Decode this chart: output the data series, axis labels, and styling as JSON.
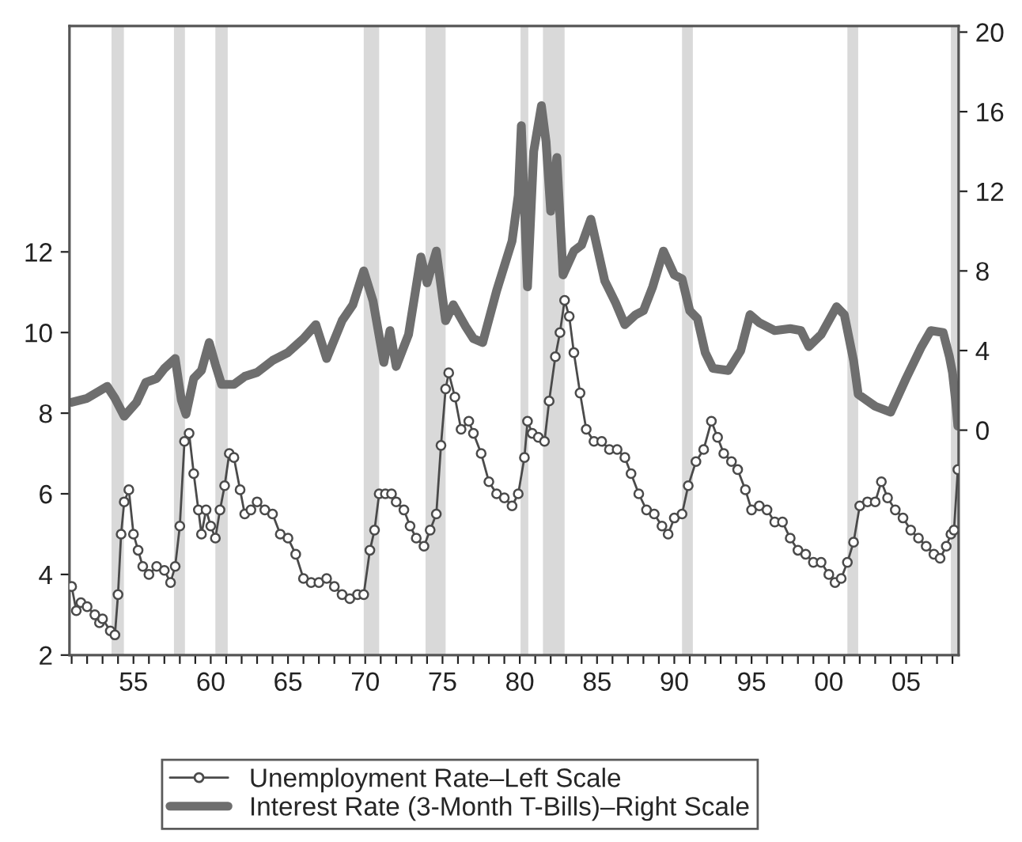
{
  "chart_data": {
    "type": "line",
    "xlim": [
      1950.86,
      2008.4
    ],
    "xticks": [
      {
        "value": 1951,
        "label": null
      },
      {
        "value": 1952,
        "label": null
      },
      {
        "value": 1953,
        "label": null
      },
      {
        "value": 1954,
        "label": null
      },
      {
        "value": 1955,
        "label": "55"
      },
      {
        "value": 1956,
        "label": null
      },
      {
        "value": 1957,
        "label": null
      },
      {
        "value": 1958,
        "label": null
      },
      {
        "value": 1959,
        "label": null
      },
      {
        "value": 1960,
        "label": "60"
      },
      {
        "value": 1961,
        "label": null
      },
      {
        "value": 1962,
        "label": null
      },
      {
        "value": 1963,
        "label": null
      },
      {
        "value": 1964,
        "label": null
      },
      {
        "value": 1965,
        "label": "65"
      },
      {
        "value": 1966,
        "label": null
      },
      {
        "value": 1967,
        "label": null
      },
      {
        "value": 1968,
        "label": null
      },
      {
        "value": 1969,
        "label": null
      },
      {
        "value": 1970,
        "label": "70"
      },
      {
        "value": 1971,
        "label": null
      },
      {
        "value": 1972,
        "label": null
      },
      {
        "value": 1973,
        "label": null
      },
      {
        "value": 1974,
        "label": null
      },
      {
        "value": 1975,
        "label": "75"
      },
      {
        "value": 1976,
        "label": null
      },
      {
        "value": 1977,
        "label": null
      },
      {
        "value": 1978,
        "label": null
      },
      {
        "value": 1979,
        "label": null
      },
      {
        "value": 1980,
        "label": "80"
      },
      {
        "value": 1981,
        "label": null
      },
      {
        "value": 1982,
        "label": null
      },
      {
        "value": 1983,
        "label": null
      },
      {
        "value": 1984,
        "label": null
      },
      {
        "value": 1985,
        "label": "85"
      },
      {
        "value": 1986,
        "label": null
      },
      {
        "value": 1987,
        "label": null
      },
      {
        "value": 1988,
        "label": null
      },
      {
        "value": 1989,
        "label": null
      },
      {
        "value": 1990,
        "label": "90"
      },
      {
        "value": 1991,
        "label": null
      },
      {
        "value": 1992,
        "label": null
      },
      {
        "value": 1993,
        "label": null
      },
      {
        "value": 1994,
        "label": null
      },
      {
        "value": 1995,
        "label": "95"
      },
      {
        "value": 1996,
        "label": null
      },
      {
        "value": 1997,
        "label": null
      },
      {
        "value": 1998,
        "label": null
      },
      {
        "value": 1999,
        "label": null
      },
      {
        "value": 2000,
        "label": "00"
      },
      {
        "value": 2001,
        "label": null
      },
      {
        "value": 2002,
        "label": null
      },
      {
        "value": 2003,
        "label": null
      },
      {
        "value": 2004,
        "label": null
      },
      {
        "value": 2005,
        "label": "05"
      },
      {
        "value": 2006,
        "label": null
      },
      {
        "value": 2007,
        "label": null
      },
      {
        "value": 2008,
        "label": null
      }
    ],
    "ylim": [
      2,
      17.6
    ],
    "yticks": [
      2,
      4,
      6,
      8,
      10,
      12
    ],
    "y2lim": [
      -11.3,
      20.3
    ],
    "y2ticks": [
      0,
      4,
      8,
      12,
      16,
      20
    ],
    "legend": "bottom",
    "bands": [
      {
        "axis": "x",
        "from": 1953.58,
        "to": 1954.38,
        "color": "#d9d9d9"
      },
      {
        "axis": "x",
        "from": 1957.62,
        "to": 1958.33,
        "color": "#d9d9d9"
      },
      {
        "axis": "x",
        "from": 1960.3,
        "to": 1961.1,
        "color": "#d9d9d9"
      },
      {
        "axis": "x",
        "from": 1969.9,
        "to": 1970.9,
        "color": "#d9d9d9"
      },
      {
        "axis": "x",
        "from": 1973.9,
        "to": 1975.2,
        "color": "#d9d9d9"
      },
      {
        "axis": "x",
        "from": 1980.05,
        "to": 1980.55,
        "color": "#d9d9d9"
      },
      {
        "axis": "x",
        "from": 1981.5,
        "to": 1982.9,
        "color": "#d9d9d9"
      },
      {
        "axis": "x",
        "from": 1990.5,
        "to": 1991.2,
        "color": "#d9d9d9"
      },
      {
        "axis": "x",
        "from": 2001.2,
        "to": 2001.9,
        "color": "#d9d9d9"
      },
      {
        "axis": "x",
        "from": 2007.9,
        "to": 2008.4,
        "color": "#d9d9d9"
      }
    ],
    "series": [
      {
        "name": "Unemployment Rate–Left Scale",
        "color": "#4a4a4a",
        "marker": "circle",
        "axis": "y",
        "x": [
          1951.0,
          1951.3,
          1951.6,
          1952.0,
          1952.5,
          1952.8,
          1953.0,
          1953.5,
          1953.8,
          1954.0,
          1954.2,
          1954.4,
          1954.7,
          1955.0,
          1955.3,
          1955.6,
          1956.0,
          1956.5,
          1957.0,
          1957.4,
          1957.7,
          1958.0,
          1958.3,
          1958.6,
          1958.9,
          1959.2,
          1959.4,
          1959.7,
          1960.0,
          1960.3,
          1960.6,
          1960.9,
          1961.2,
          1961.5,
          1961.9,
          1962.2,
          1962.6,
          1963.0,
          1963.5,
          1964.0,
          1964.5,
          1965.0,
          1965.5,
          1966.0,
          1966.5,
          1967.0,
          1967.5,
          1968.0,
          1968.5,
          1969.0,
          1969.5,
          1969.9,
          1970.3,
          1970.6,
          1970.9,
          1971.3,
          1971.7,
          1972.0,
          1972.5,
          1972.9,
          1973.3,
          1973.8,
          1974.2,
          1974.6,
          1974.9,
          1975.2,
          1975.4,
          1975.8,
          1976.2,
          1976.7,
          1977.0,
          1977.5,
          1978.0,
          1978.5,
          1979.0,
          1979.5,
          1979.9,
          1980.3,
          1980.5,
          1980.8,
          1981.2,
          1981.6,
          1981.9,
          1982.3,
          1982.6,
          1982.9,
          1983.2,
          1983.5,
          1983.9,
          1984.3,
          1984.8,
          1985.3,
          1985.8,
          1986.3,
          1986.8,
          1987.2,
          1987.7,
          1988.2,
          1988.7,
          1989.2,
          1989.6,
          1990.0,
          1990.5,
          1990.9,
          1991.4,
          1991.9,
          1992.4,
          1992.8,
          1993.2,
          1993.7,
          1994.1,
          1994.6,
          1995.0,
          1995.5,
          1996.0,
          1996.5,
          1997.0,
          1997.5,
          1998.0,
          1998.5,
          1999.0,
          1999.5,
          2000.0,
          2000.4,
          2000.8,
          2001.2,
          2001.6,
          2002.0,
          2002.5,
          2003.0,
          2003.4,
          2003.8,
          2004.3,
          2004.8,
          2005.3,
          2005.8,
          2006.3,
          2006.8,
          2007.2,
          2007.6,
          2007.9,
          2008.1,
          2008.35
        ],
        "values": [
          3.7,
          3.1,
          3.3,
          3.2,
          3.0,
          2.8,
          2.9,
          2.6,
          2.5,
          3.5,
          5.0,
          5.8,
          6.1,
          5.0,
          4.6,
          4.2,
          4.0,
          4.2,
          4.1,
          3.8,
          4.2,
          5.2,
          7.3,
          7.5,
          6.5,
          5.6,
          5.0,
          5.6,
          5.2,
          4.9,
          5.6,
          6.2,
          7.0,
          6.9,
          6.1,
          5.5,
          5.6,
          5.8,
          5.6,
          5.5,
          5.0,
          4.9,
          4.5,
          3.9,
          3.8,
          3.8,
          3.9,
          3.7,
          3.5,
          3.4,
          3.5,
          3.5,
          4.6,
          5.1,
          6.0,
          6.0,
          6.0,
          5.8,
          5.6,
          5.2,
          4.9,
          4.7,
          5.1,
          5.5,
          7.2,
          8.6,
          9.0,
          8.4,
          7.6,
          7.8,
          7.5,
          7.0,
          6.3,
          6.0,
          5.9,
          5.7,
          6.0,
          6.9,
          7.8,
          7.5,
          7.4,
          7.3,
          8.3,
          9.4,
          10.0,
          10.8,
          10.4,
          9.5,
          8.5,
          7.6,
          7.3,
          7.3,
          7.1,
          7.1,
          6.9,
          6.5,
          6.0,
          5.6,
          5.5,
          5.2,
          5.0,
          5.4,
          5.5,
          6.2,
          6.8,
          7.1,
          7.8,
          7.4,
          7.0,
          6.8,
          6.6,
          6.1,
          5.6,
          5.7,
          5.6,
          5.3,
          5.3,
          4.9,
          4.6,
          4.5,
          4.3,
          4.3,
          4.0,
          3.8,
          3.9,
          4.3,
          4.8,
          5.7,
          5.8,
          5.8,
          6.3,
          5.9,
          5.6,
          5.4,
          5.1,
          4.9,
          4.7,
          4.5,
          4.4,
          4.7,
          5.0,
          5.1,
          6.6
        ]
      },
      {
        "name": "Interest Rate (3-Month T-Bills)–Right Scale",
        "color": "#6e6e6e",
        "marker": "none",
        "axis": "y2",
        "x": [
          1951.0,
          1952.0,
          1953.3,
          1953.8,
          1954.4,
          1955.2,
          1955.8,
          1956.5,
          1957.0,
          1957.7,
          1958.1,
          1958.4,
          1958.9,
          1959.4,
          1959.9,
          1960.3,
          1960.7,
          1961.5,
          1962.2,
          1963.0,
          1964.0,
          1965.0,
          1966.0,
          1966.8,
          1967.5,
          1968.5,
          1969.2,
          1969.9,
          1970.5,
          1971.2,
          1971.6,
          1972.0,
          1972.8,
          1973.6,
          1974.0,
          1974.6,
          1975.2,
          1975.7,
          1976.5,
          1977.0,
          1977.6,
          1978.5,
          1979.5,
          1979.9,
          1980.1,
          1980.5,
          1980.9,
          1981.4,
          1981.7,
          1982.0,
          1982.4,
          1982.8,
          1983.5,
          1984.0,
          1984.6,
          1985.5,
          1986.2,
          1986.8,
          1987.5,
          1988.0,
          1988.6,
          1989.3,
          1990.0,
          1990.5,
          1991.0,
          1991.5,
          1992.0,
          1992.5,
          1993.5,
          1994.3,
          1994.9,
          1995.5,
          1996.5,
          1997.5,
          1998.2,
          1998.7,
          1999.5,
          2000.5,
          2001.0,
          2001.6,
          2001.9,
          2003.0,
          2004.0,
          2005.0,
          2006.0,
          2006.6,
          2007.4,
          2007.8,
          2008.0,
          2008.2,
          2008.35
        ],
        "values": [
          1.4,
          1.6,
          2.2,
          1.6,
          0.7,
          1.4,
          2.4,
          2.6,
          3.1,
          3.6,
          1.5,
          0.8,
          2.6,
          3.0,
          4.4,
          3.3,
          2.3,
          2.3,
          2.7,
          2.9,
          3.5,
          3.9,
          4.6,
          5.3,
          3.6,
          5.5,
          6.3,
          8.0,
          6.5,
          3.4,
          5.0,
          3.2,
          4.8,
          8.7,
          7.4,
          9.0,
          5.5,
          6.3,
          5.2,
          4.6,
          4.4,
          7.0,
          9.5,
          11.8,
          15.3,
          7.2,
          14.0,
          16.3,
          14.5,
          11.0,
          13.7,
          7.8,
          9.0,
          9.3,
          10.6,
          7.5,
          6.4,
          5.3,
          5.8,
          6.0,
          7.2,
          9.0,
          7.8,
          7.6,
          6.0,
          5.6,
          3.9,
          3.1,
          3.0,
          4.0,
          5.8,
          5.4,
          5.0,
          5.1,
          5.0,
          4.2,
          4.8,
          6.2,
          5.8,
          3.5,
          1.8,
          1.2,
          0.9,
          2.6,
          4.2,
          5.0,
          4.9,
          3.7,
          2.9,
          1.5,
          0.2
        ]
      }
    ]
  }
}
